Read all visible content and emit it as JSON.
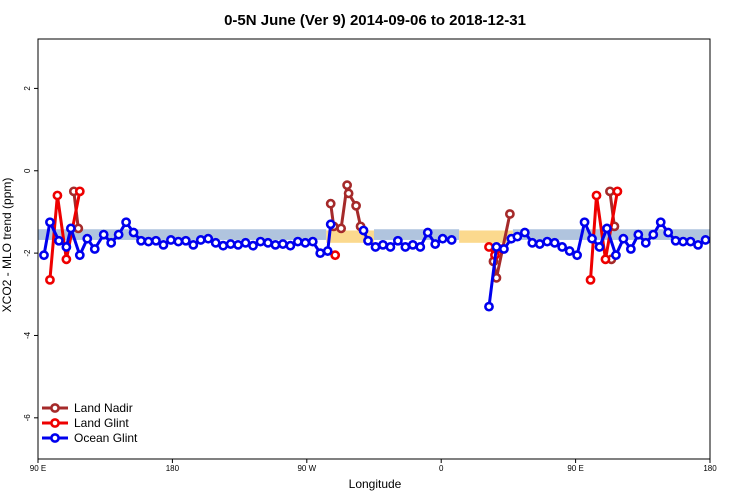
{
  "chart_data": {
    "type": "line",
    "title": "0-5N June (Ver 9)   2014-09-06 to 2018-12-31",
    "xlabel": "Longitude",
    "ylabel": "XCO2 - MLO trend (ppm)",
    "xlim": [
      0,
      450
    ],
    "ylim": [
      -7,
      3.2
    ],
    "x_ticks": [
      {
        "value": 0,
        "label": "90 E"
      },
      {
        "value": 90,
        "label": "180"
      },
      {
        "value": 180,
        "label": "90 W"
      },
      {
        "value": 270,
        "label": "0"
      },
      {
        "value": 360,
        "label": "90 E"
      },
      {
        "value": 450,
        "label": "180"
      }
    ],
    "y_ticks": [
      2,
      0,
      -2,
      -4,
      -6
    ],
    "bands": [
      {
        "x": [
          0,
          193
        ],
        "y": [
          -1.68,
          -1.42
        ],
        "color": "#b0c4de"
      },
      {
        "x": [
          193,
          225
        ],
        "y": [
          -1.75,
          -1.45
        ],
        "color": "#fbd98e"
      },
      {
        "x": [
          225,
          282
        ],
        "y": [
          -1.68,
          -1.42
        ],
        "color": "#b0c4de"
      },
      {
        "x": [
          282,
          318
        ],
        "y": [
          -1.75,
          -1.45
        ],
        "color": "#fbd98e"
      },
      {
        "x": [
          318,
          450
        ],
        "y": [
          -1.68,
          -1.42
        ],
        "color": "#b0c4de"
      }
    ],
    "series": [
      {
        "name": "Land Nadir",
        "color": "#a52a2a",
        "segments": [
          [
            [
              24,
              -0.5
            ],
            [
              27,
              -1.4
            ]
          ],
          [
            [
              196,
              -0.8
            ],
            [
              198,
              -1.35
            ],
            [
              203,
              -1.4
            ],
            [
              207,
              -0.35
            ],
            [
              208,
              -0.55
            ],
            [
              213,
              -0.85
            ],
            [
              216,
              -1.35
            ]
          ],
          [
            [
              305,
              -2.2
            ],
            [
              307,
              -2.6
            ],
            [
              316,
              -1.05
            ]
          ],
          [
            [
              384,
              -2.15
            ]
          ],
          [
            [
              383,
              -0.5
            ],
            [
              386,
              -1.35
            ]
          ]
        ]
      },
      {
        "name": "Land Glint",
        "color": "#ee0000",
        "segments": [
          [
            [
              8,
              -2.65
            ],
            [
              13,
              -0.6
            ],
            [
              19,
              -2.15
            ],
            [
              28,
              -0.5
            ]
          ],
          [
            [
              199,
              -2.05
            ]
          ],
          [
            [
              302,
              -1.85
            ],
            [
              306,
              -2.05
            ],
            [
              311,
              -1.9
            ]
          ],
          [
            [
              370,
              -2.65
            ],
            [
              374,
              -0.6
            ],
            [
              380,
              -2.15
            ],
            [
              388,
              -0.5
            ]
          ]
        ]
      },
      {
        "name": "Ocean Glint",
        "color": "#0000ee",
        "segments": [
          [
            [
              4,
              -2.05
            ],
            [
              8,
              -1.25
            ],
            [
              14,
              -1.7
            ],
            [
              19,
              -1.85
            ],
            [
              22,
              -1.4
            ],
            [
              28,
              -2.05
            ],
            [
              33,
              -1.65
            ],
            [
              38,
              -1.9
            ],
            [
              44,
              -1.55
            ],
            [
              49,
              -1.75
            ],
            [
              54,
              -1.55
            ],
            [
              59,
              -1.25
            ],
            [
              64,
              -1.5
            ],
            [
              69,
              -1.7
            ],
            [
              74,
              -1.72
            ],
            [
              79,
              -1.7
            ],
            [
              84,
              -1.8
            ],
            [
              89,
              -1.68
            ],
            [
              94,
              -1.72
            ],
            [
              99,
              -1.7
            ],
            [
              104,
              -1.8
            ],
            [
              109,
              -1.68
            ],
            [
              114,
              -1.65
            ],
            [
              119,
              -1.75
            ],
            [
              124,
              -1.82
            ],
            [
              129,
              -1.78
            ],
            [
              134,
              -1.8
            ],
            [
              139,
              -1.75
            ],
            [
              144,
              -1.82
            ],
            [
              149,
              -1.72
            ],
            [
              154,
              -1.75
            ],
            [
              159,
              -1.8
            ],
            [
              164,
              -1.78
            ],
            [
              169,
              -1.82
            ],
            [
              174,
              -1.72
            ],
            [
              179,
              -1.75
            ],
            [
              184,
              -1.72
            ],
            [
              189,
              -2.0
            ],
            [
              194,
              -1.95
            ],
            [
              196,
              -1.3
            ]
          ],
          [
            [
              218,
              -1.45
            ],
            [
              221,
              -1.7
            ],
            [
              226,
              -1.85
            ],
            [
              231,
              -1.8
            ],
            [
              236,
              -1.85
            ],
            [
              241,
              -1.7
            ],
            [
              246,
              -1.85
            ],
            [
              251,
              -1.8
            ],
            [
              256,
              -1.85
            ],
            [
              261,
              -1.5
            ],
            [
              266,
              -1.78
            ],
            [
              271,
              -1.65
            ],
            [
              277,
              -1.68
            ]
          ],
          [
            [
              302,
              -3.3
            ],
            [
              307,
              -1.85
            ],
            [
              312,
              -1.9
            ],
            [
              317,
              -1.65
            ],
            [
              321,
              -1.6
            ],
            [
              326,
              -1.5
            ],
            [
              331,
              -1.75
            ],
            [
              336,
              -1.78
            ],
            [
              341,
              -1.72
            ],
            [
              346,
              -1.75
            ],
            [
              351,
              -1.85
            ],
            [
              356,
              -1.95
            ],
            [
              361,
              -2.05
            ],
            [
              366,
              -1.25
            ],
            [
              371,
              -1.65
            ],
            [
              376,
              -1.85
            ],
            [
              381,
              -1.4
            ],
            [
              387,
              -2.05
            ],
            [
              392,
              -1.65
            ],
            [
              397,
              -1.9
            ],
            [
              402,
              -1.55
            ],
            [
              407,
              -1.75
            ],
            [
              412,
              -1.55
            ],
            [
              417,
              -1.25
            ],
            [
              422,
              -1.5
            ],
            [
              427,
              -1.7
            ],
            [
              432,
              -1.72
            ],
            [
              437,
              -1.72
            ],
            [
              442,
              -1.8
            ],
            [
              447,
              -1.68
            ]
          ]
        ]
      }
    ],
    "legend": {
      "position": "bottom-left",
      "entries": [
        {
          "label": "Land Nadir",
          "color": "#a52a2a"
        },
        {
          "label": "Land Glint",
          "color": "#ee0000"
        },
        {
          "label": "Ocean Glint",
          "color": "#0000ee"
        }
      ]
    },
    "grid": false
  }
}
